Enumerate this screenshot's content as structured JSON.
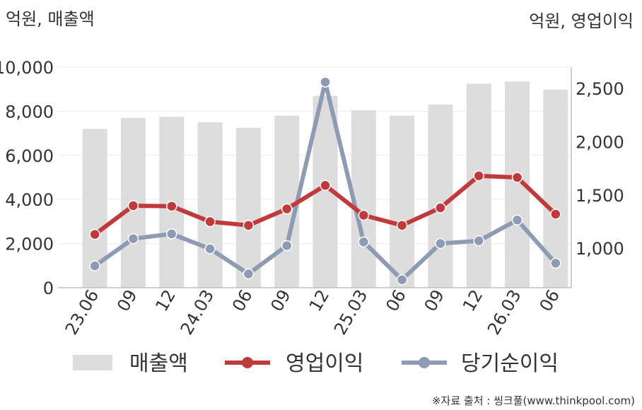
{
  "chart_data": {
    "type": "bar+line",
    "left_axis_label": "억원, 매출액",
    "right_axis_label": "억원, 영업이익",
    "categories": [
      "23.06",
      "09",
      "12",
      "24.03",
      "06",
      "09",
      "12",
      "25.03",
      "06",
      "09",
      "12",
      "26.03",
      "06"
    ],
    "left_yticks": [
      "10,000",
      "8,000",
      "6,000",
      "4,000",
      "2,000",
      "0"
    ],
    "right_yticks": [
      "2,500",
      "2,000",
      "1,500",
      "1,000"
    ],
    "left_ylim": [
      0,
      10000
    ],
    "right_ylim": [
      630,
      2700
    ],
    "series": [
      {
        "name": "매출액",
        "kind": "bar",
        "axis": "left",
        "color": "#dddddd",
        "values": [
          7200,
          7700,
          7750,
          7500,
          7250,
          7800,
          8700,
          8050,
          7800,
          8300,
          9250,
          9350,
          8980
        ]
      },
      {
        "name": "영업이익",
        "kind": "line",
        "axis": "right",
        "color": "#c1393a",
        "values": [
          1130,
          1400,
          1395,
          1250,
          1215,
          1370,
          1590,
          1310,
          1215,
          1380,
          1680,
          1665,
          1320
        ]
      },
      {
        "name": "당기순이익",
        "kind": "line",
        "axis": "right",
        "color": "#8e9bb5",
        "values": [
          835,
          1090,
          1135,
          995,
          760,
          1025,
          2560,
          1060,
          705,
          1045,
          1070,
          1265,
          860
        ]
      }
    ],
    "legend": [
      "매출액",
      "영업이익",
      "당기순이익"
    ],
    "grid": true,
    "legend_position": "bottom"
  },
  "source_note": "※자료 출처 : 씽크풀(www.thinkpool.com)"
}
